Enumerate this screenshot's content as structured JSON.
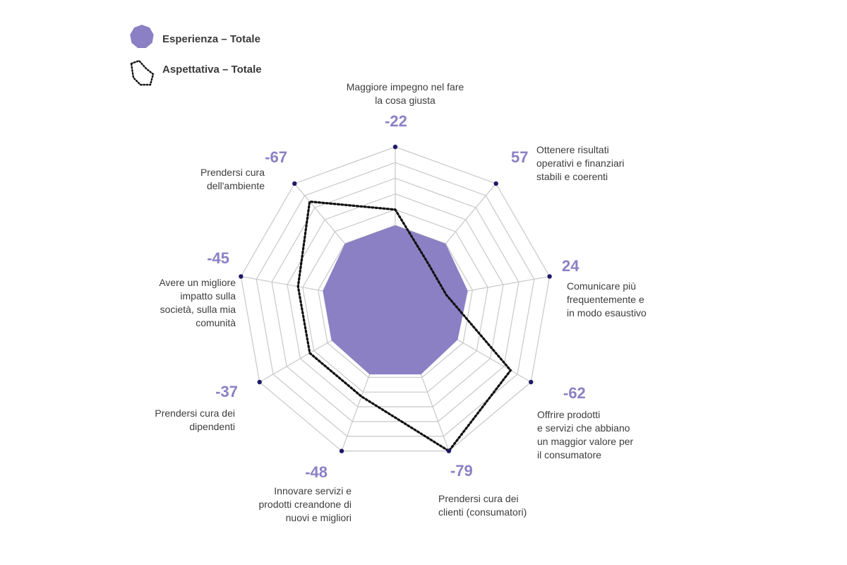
{
  "chart_data": {
    "type": "radar",
    "legend": [
      {
        "name": "Esperienza – Totale",
        "style": "filled",
        "color": "#8b80c4"
      },
      {
        "name": "Aspettativa – Totale",
        "style": "dotted",
        "color": "#111111"
      }
    ],
    "axes": [
      {
        "label": [
          "Maggiore impegno nel fare",
          "la cosa giusta"
        ],
        "delta": "-22"
      },
      {
        "label": [
          "Ottenere risultati",
          "operativi e finanziari",
          "stabili e coerenti"
        ],
        "delta": "57"
      },
      {
        "label": [
          "Comunicare più",
          "frequentemente e",
          "in modo esaustivo"
        ],
        "delta": "24"
      },
      {
        "label": [
          "Offrire prodotti",
          "e servizi che abbiano",
          "un maggior valore per",
          "il consumatore"
        ],
        "delta": "-62"
      },
      {
        "label": [
          "Prendersi cura dei",
          "clienti (consumatori)"
        ],
        "delta": "-79"
      },
      {
        "label": [
          "Innovare servizi e",
          "prodotti creandone di",
          "nuovi e migliori"
        ],
        "delta": "-48"
      },
      {
        "label": [
          "Prendersi cura dei",
          "dipendenti"
        ],
        "delta": "-37"
      },
      {
        "label": [
          "Avere un migliore",
          "impatto sulla",
          "società, sulla mia",
          "comunità"
        ],
        "delta": "-45"
      },
      {
        "label": [
          "Prendersi cura",
          "dell'ambiente"
        ],
        "delta": "-67"
      }
    ],
    "series": [
      {
        "name": "Esperienza – Totale",
        "values": [
          0.5,
          0.5,
          0.47,
          0.46,
          0.48,
          0.48,
          0.47,
          0.47,
          0.5
        ]
      },
      {
        "name": "Aspettativa – Totale",
        "values": [
          0.6,
          0.33,
          0.33,
          0.85,
          1.0,
          0.63,
          0.63,
          0.63,
          0.85
        ]
      }
    ],
    "rings": 10,
    "grid": true,
    "legend_position": "top-left"
  },
  "colors": {
    "accent": "#8b80c4",
    "grid": "#c8c8c8",
    "dot": "#1f1a66",
    "dotted_line": "#111111"
  }
}
